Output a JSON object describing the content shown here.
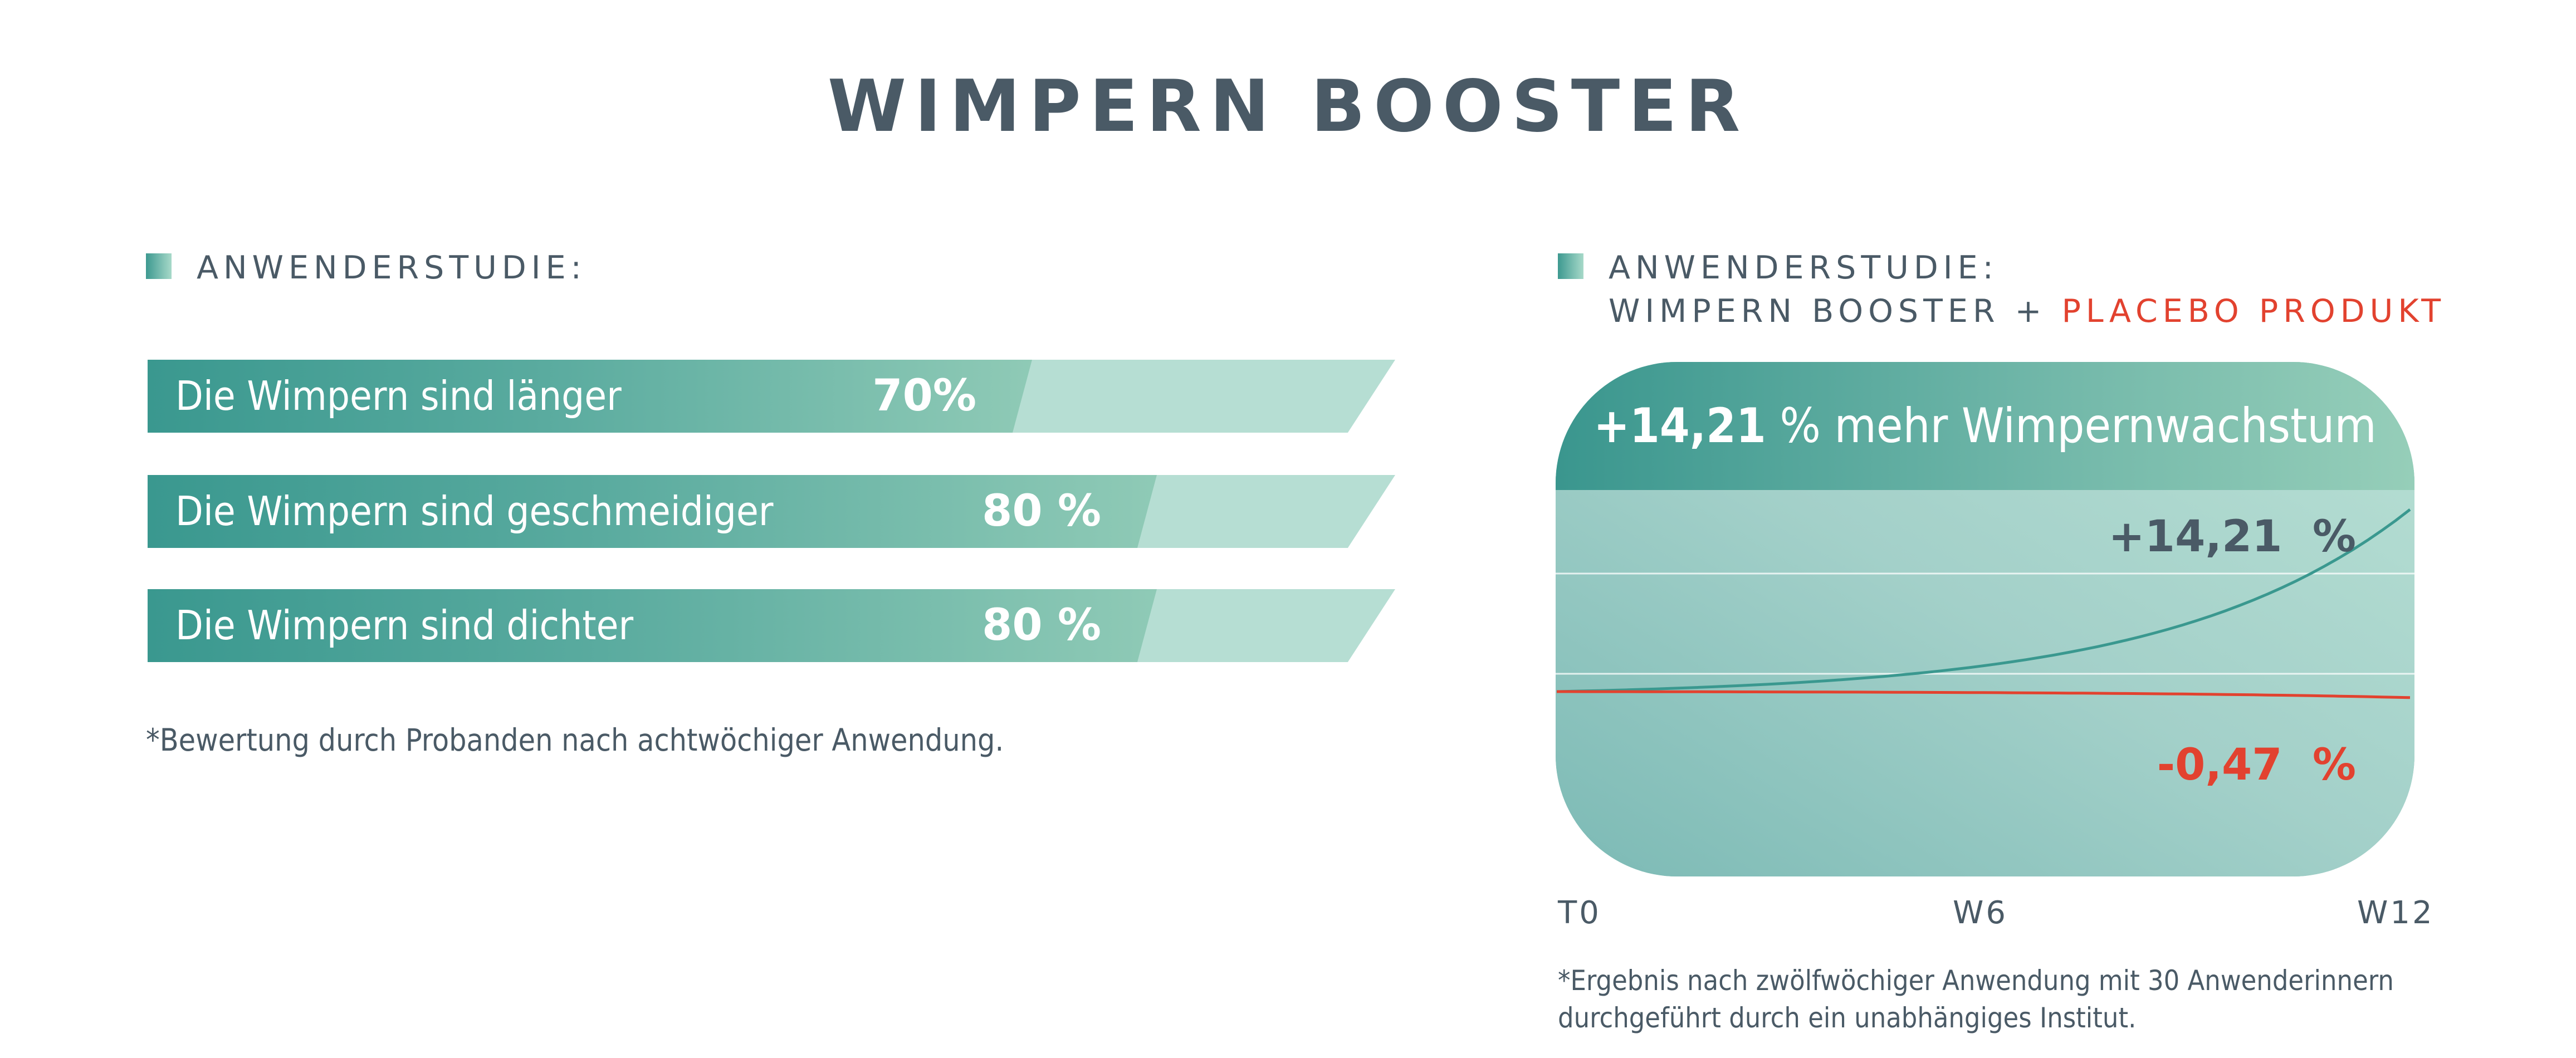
{
  "title": "WIMPERN BOOSTER",
  "left_section": {
    "heading": "ANWENDERSTUDIE:",
    "footnote": "*Bewertung durch Probanden nach achtwöchiger Anwendung."
  },
  "right_section": {
    "heading_line1": "ANWENDERSTUDIE:",
    "heading_line2_prefix": "WIMPERN BOOSTER + ",
    "heading_line2_highlight": "PLACEBO PRODUKT",
    "headline_value": "+14,21",
    "headline_rest": " % mehr Wimpernwachstum",
    "footnote_line1": "*Ergebnis nach zwölfwöchiger Anwendung mit 30 Anwenderinnern",
    "footnote_line2": "durchgeführt durch ein unabhängiges Institut."
  },
  "colors": {
    "teal": "#3a988f",
    "mint": "#b6ded3",
    "text": "#4a5a66",
    "red": "#e2422f"
  },
  "chart_data": [
    {
      "type": "bar",
      "orientation": "horizontal",
      "categories": [
        "Die Wimpern sind länger",
        "Die Wimpern sind geschmeidiger",
        "Die Wimpern sind dichter"
      ],
      "values": [
        70,
        80,
        80
      ],
      "value_labels": [
        "70%",
        "80 %",
        "80 %"
      ],
      "xlim": [
        0,
        100
      ],
      "unit": "%"
    },
    {
      "type": "line",
      "x": [
        "T0",
        "W6",
        "W12"
      ],
      "series": [
        {
          "name": "WIMPERN BOOSTER",
          "color": "#3a988f",
          "values": [
            0,
            2.2,
            14.21
          ],
          "end_label": "+14,21  %"
        },
        {
          "name": "PLACEBO PRODUKT",
          "color": "#e2422f",
          "values": [
            0,
            -0.08,
            -0.47
          ],
          "end_label": "-0,47  %"
        }
      ],
      "ylim": [
        -2,
        16
      ],
      "grid": true
    }
  ]
}
